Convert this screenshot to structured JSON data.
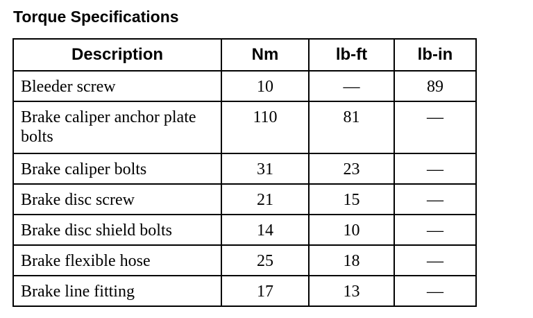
{
  "title": "Torque Specifications",
  "columns": [
    "Description",
    "Nm",
    "lb-ft",
    "lb-in"
  ],
  "rows": [
    {
      "description": "Bleeder screw",
      "nm": "10",
      "lbft": "—",
      "lbin": "89"
    },
    {
      "description": "Brake caliper anchor plate bolts",
      "nm": "110",
      "lbft": "81",
      "lbin": "—"
    },
    {
      "description": "Brake caliper bolts",
      "nm": "31",
      "lbft": "23",
      "lbin": "—"
    },
    {
      "description": "Brake disc screw",
      "nm": "21",
      "lbft": "15",
      "lbin": "—"
    },
    {
      "description": "Brake disc shield bolts",
      "nm": "14",
      "lbft": "10",
      "lbin": "—"
    },
    {
      "description": "Brake flexible hose",
      "nm": "25",
      "lbft": "18",
      "lbin": "—"
    },
    {
      "description": "Brake line fitting",
      "nm": "17",
      "lbft": "13",
      "lbin": "—"
    }
  ]
}
